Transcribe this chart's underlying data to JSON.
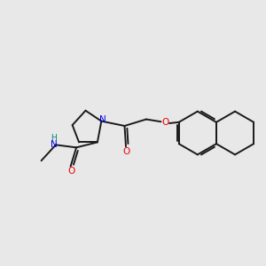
{
  "bg_color": "#e8e8e8",
  "bond_color": "#1a1a1a",
  "N_color": "#0000ee",
  "O_color": "#ee0000",
  "H_color": "#008080",
  "line_width": 1.4,
  "figsize": [
    3.0,
    3.0
  ],
  "dpi": 100,
  "xlim": [
    0,
    10
  ],
  "ylim": [
    0,
    10
  ]
}
